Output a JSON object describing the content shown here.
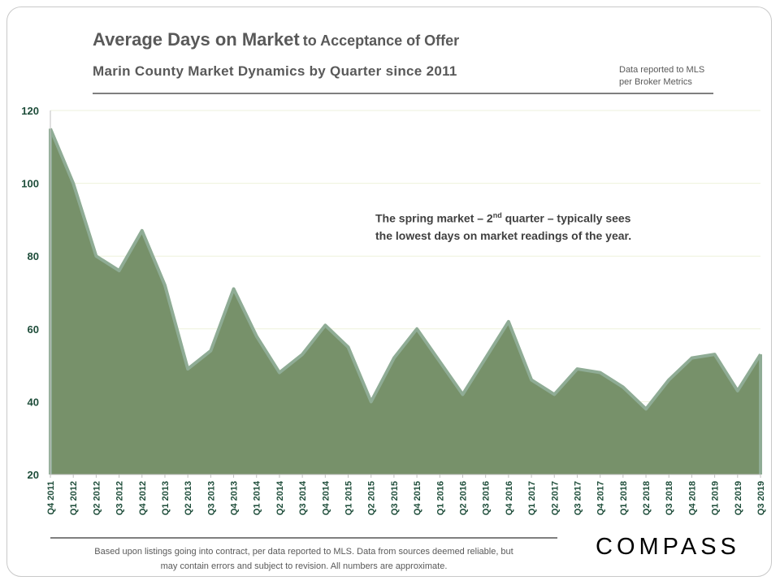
{
  "header": {
    "title_main": "Average Days on Market",
    "title_sub": "to Acceptance of Offer",
    "subtitle": "Marin County Market Dynamics by Quarter since 2011",
    "source_line1": "Data reported to MLS",
    "source_line2": "per Broker Metrics"
  },
  "annotation": {
    "line1_a": "The spring market – 2",
    "line1_sup": "nd",
    "line1_b": " quarter – typically sees",
    "line2": "the lowest days on market readings of the year."
  },
  "footer": {
    "line1": "Based upon listings going into contract, per data reported to MLS. Data from sources deemed reliable, but",
    "line2": "may contain errors and subject to revision. All numbers are approximate.",
    "logo": "COMPASS"
  },
  "colors": {
    "area_fill": "#77916a",
    "area_stroke": "#8fac95",
    "axis_text": "#1e4d3a",
    "grid": "#eef2dc"
  },
  "chart_data": {
    "type": "area",
    "title": "Average Days on Market to Acceptance of Offer",
    "xlabel": "",
    "ylabel": "",
    "ylim": [
      20,
      120
    ],
    "yticks": [
      20,
      40,
      60,
      80,
      100,
      120
    ],
    "grid": true,
    "categories": [
      "Q4 2011",
      "Q1 2012",
      "Q2 2012",
      "Q3 2012",
      "Q4 2012",
      "Q1 2013",
      "Q2 2013",
      "Q3 2013",
      "Q4 2013",
      "Q1 2014",
      "Q2 2014",
      "Q3 2014",
      "Q4 2014",
      "Q1 2015",
      "Q2 2015",
      "Q3 2015",
      "Q4 2015",
      "Q1 2016",
      "Q2 2016",
      "Q3 2016",
      "Q4 2016",
      "Q1 2017",
      "Q2 2017",
      "Q3 2017",
      "Q4 2017",
      "Q1 2018",
      "Q2 2018",
      "Q3 2018",
      "Q4 2018",
      "Q1 2019",
      "Q2 2019",
      "Q3 2019"
    ],
    "values": [
      115,
      100,
      80,
      76,
      87,
      72,
      49,
      54,
      71,
      58,
      48,
      53,
      61,
      55,
      40,
      52,
      60,
      51,
      42,
      52,
      62,
      46,
      42,
      49,
      48,
      44,
      38,
      46,
      52,
      53,
      43,
      53
    ]
  }
}
